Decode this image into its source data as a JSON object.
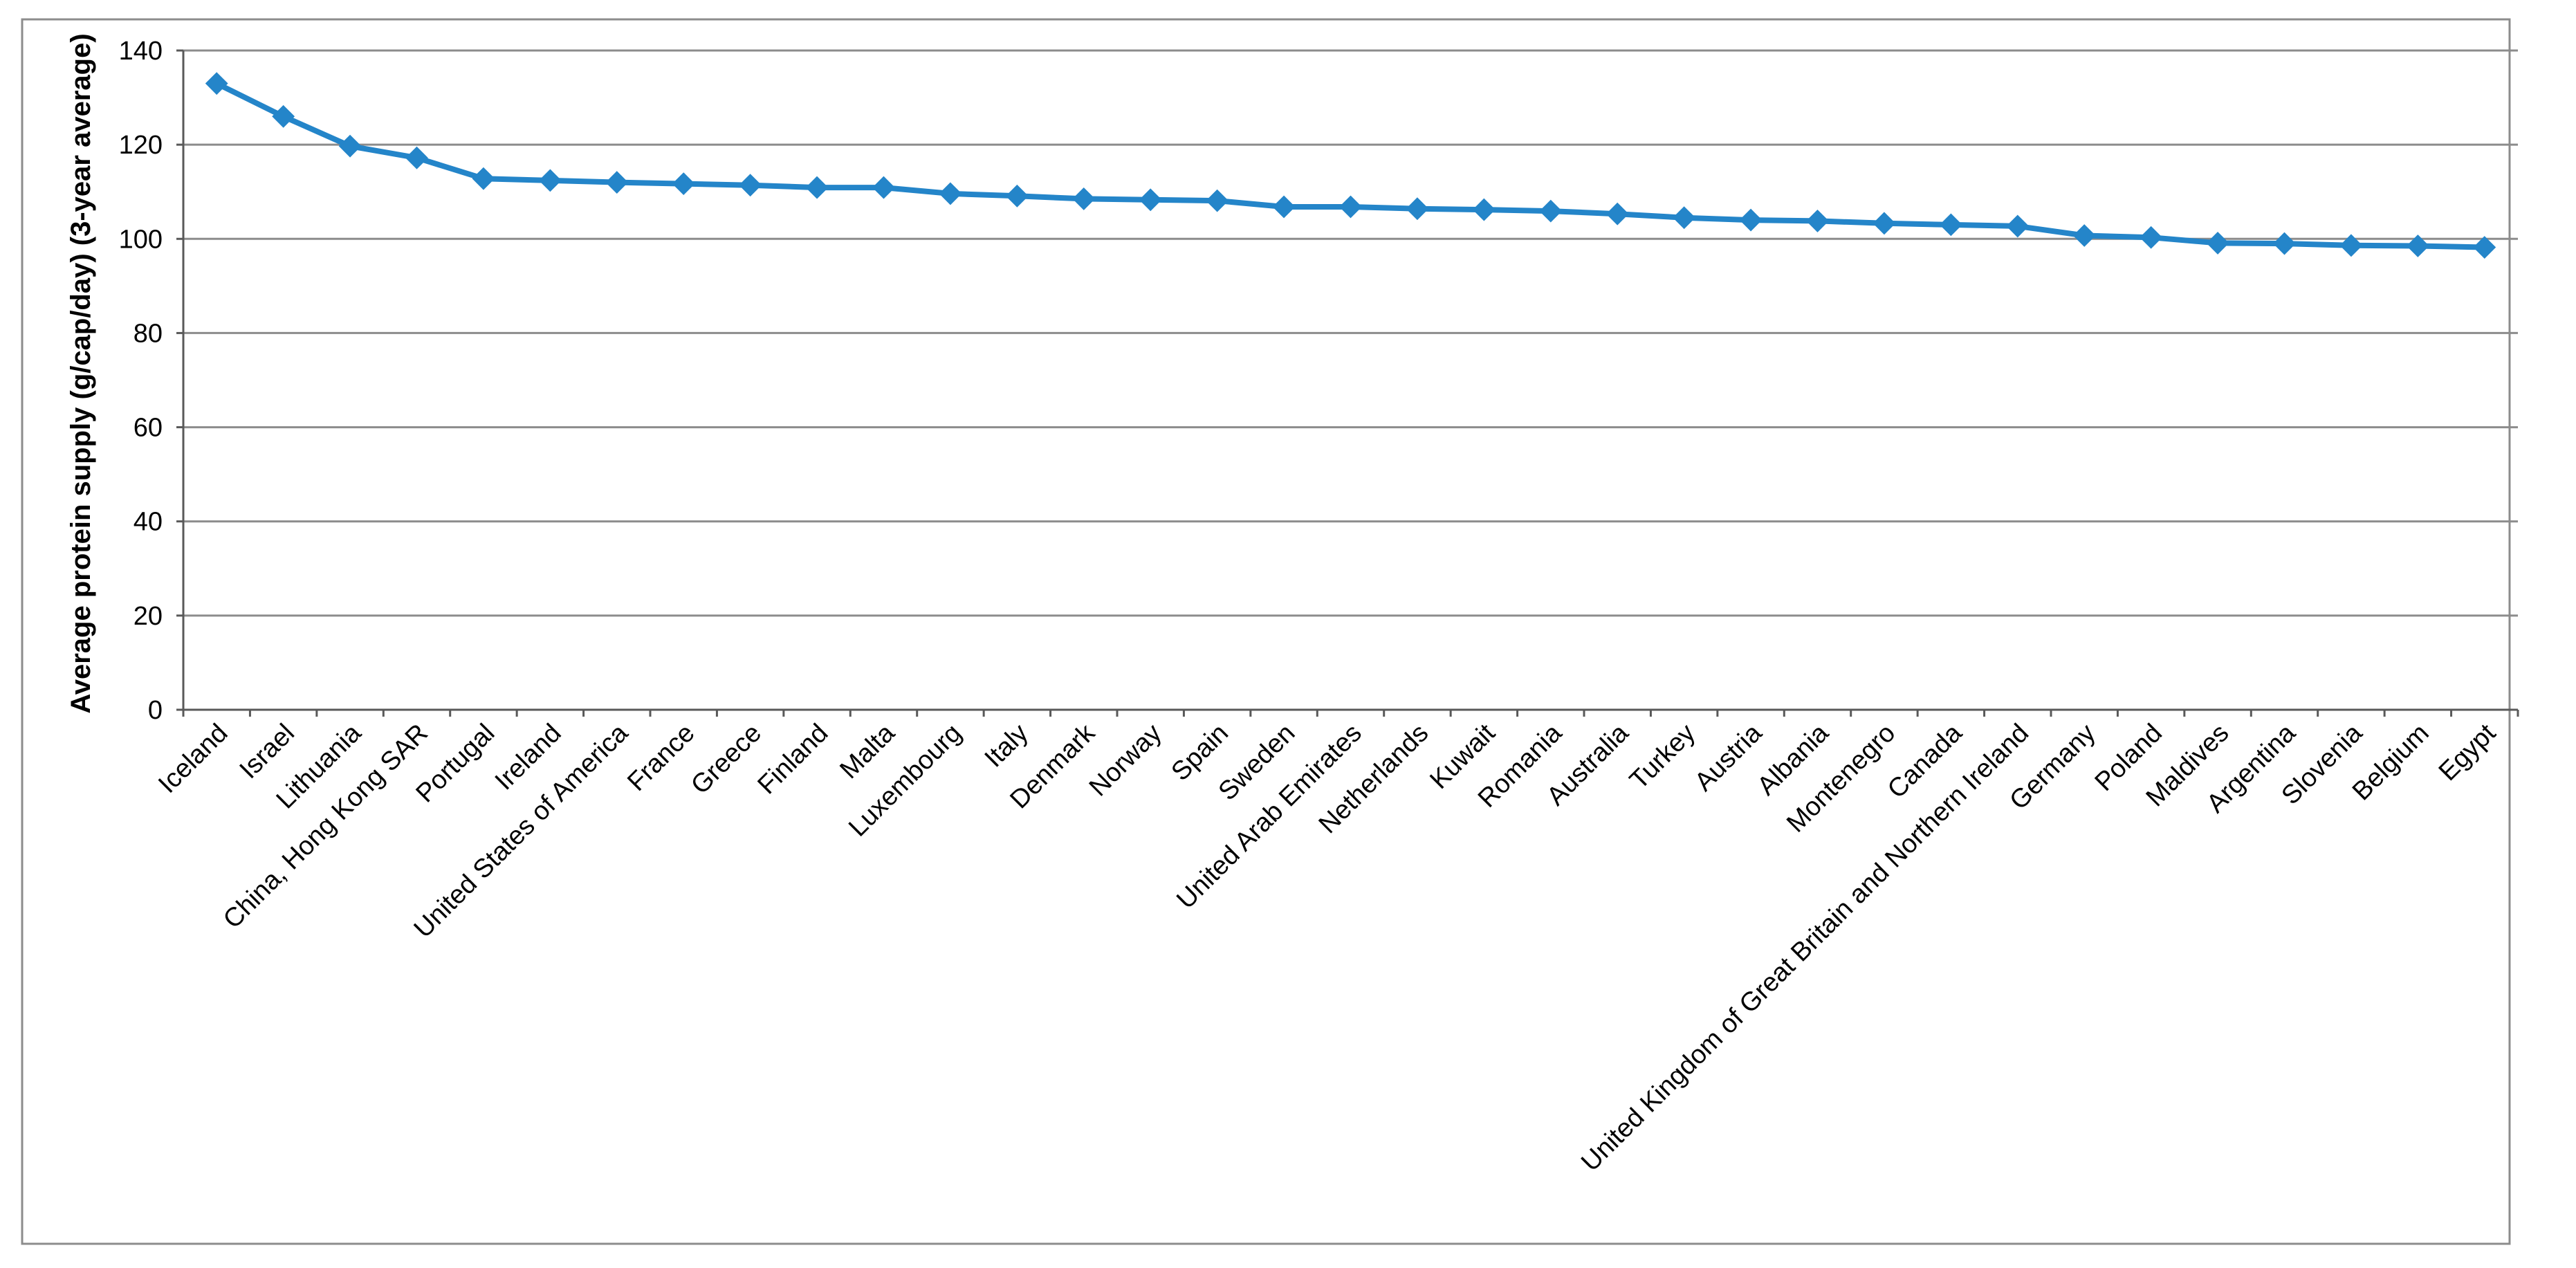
{
  "chart_data": {
    "type": "line",
    "title": "",
    "xlabel": "",
    "ylabel": "Average protein supply (g/cap/day) (3-year average)",
    "ylim": [
      0,
      140
    ],
    "yticks": [
      0,
      20,
      40,
      60,
      80,
      100,
      120,
      140
    ],
    "grid": "horizontal",
    "legend": "none",
    "marker": "diamond",
    "categories": [
      "Iceland",
      "Israel",
      "Lithuania",
      "China, Hong Kong SAR",
      "Portugal",
      "Ireland",
      "United States of America",
      "France",
      "Greece",
      "Finland",
      "Malta",
      "Luxembourg",
      "Italy",
      "Denmark",
      "Norway",
      "Spain",
      "Sweden",
      "United Arab Emirates",
      "Netherlands",
      "Kuwait",
      "Romania",
      "Australia",
      "Turkey",
      "Austria",
      "Albania",
      "Montenegro",
      "Canada",
      "United Kingdom of Great Britain and Northern Ireland",
      "Germany",
      "Poland",
      "Maldives",
      "Argentina",
      "Slovenia",
      "Belgium",
      "Egypt"
    ],
    "series": [
      {
        "values": [
          133.0,
          126.0,
          119.7,
          117.2,
          112.8,
          112.4,
          112.0,
          111.7,
          111.4,
          110.9,
          110.9,
          109.6,
          109.1,
          108.5,
          108.3,
          108.1,
          106.8,
          106.8,
          106.4,
          106.2,
          105.9,
          105.3,
          104.5,
          104.0,
          103.8,
          103.3,
          103.0,
          102.7,
          100.7,
          100.3,
          99.1,
          99.0,
          98.6,
          98.5,
          98.2
        ]
      }
    ]
  },
  "colors": {
    "series_line": "#2485C9",
    "series_marker": "#2485C9",
    "gridline": "#8C8C8C",
    "axis": "#595959",
    "frame": "#8C8C8C",
    "background": "#FFFFFF"
  }
}
